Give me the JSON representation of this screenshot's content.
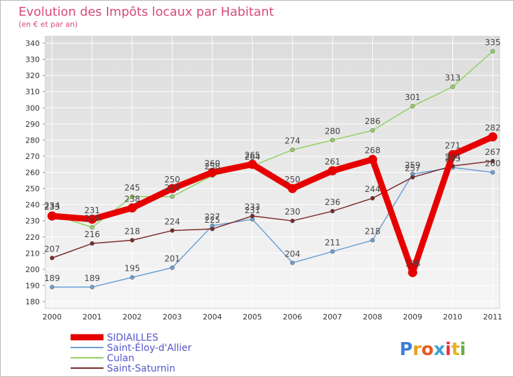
{
  "chart_data": {
    "type": "line",
    "title": "Evolution des Impôts locaux par Habitant",
    "subtitle": "(en € et par an)",
    "x": [
      "2000",
      "2001",
      "2002",
      "2003",
      "2004",
      "2005",
      "2006",
      "2007",
      "2008",
      "2009",
      "2010",
      "2011"
    ],
    "ylim": [
      180,
      340
    ],
    "yticks": [
      180,
      190,
      200,
      210,
      220,
      230,
      240,
      250,
      260,
      270,
      280,
      290,
      300,
      310,
      320,
      330,
      340
    ],
    "grid": true,
    "legend_position": "bottom-left",
    "series": [
      {
        "name": "SIDIAILLES",
        "color": "#e60000",
        "values": [
          233,
          231,
          238,
          250,
          260,
          265,
          250,
          261,
          268,
          198,
          271,
          282
        ]
      },
      {
        "name": "Saint-Éloy-d'Allier",
        "color": "#6a9fd4",
        "values": [
          189,
          189,
          195,
          201,
          227,
          231,
          204,
          211,
          218,
          259,
          263,
          260
        ]
      },
      {
        "name": "Culan",
        "color": "#90d060",
        "values": [
          234,
          226,
          245,
          245,
          258,
          264,
          274,
          280,
          286,
          301,
          313,
          335
        ]
      },
      {
        "name": "Saint-Saturnin",
        "color": "#7a2a2a",
        "values": [
          207,
          216,
          218,
          224,
          225,
          233,
          230,
          236,
          244,
          257,
          264,
          267
        ]
      }
    ]
  },
  "logo": {
    "letters": [
      "P",
      "r",
      "o",
      "x",
      "i",
      "t",
      "i"
    ],
    "colors": [
      "#3b7dd8",
      "#e8a020",
      "#e85a20",
      "#3ba0d8",
      "#e83040",
      "#e8b020",
      "#60b040"
    ]
  }
}
